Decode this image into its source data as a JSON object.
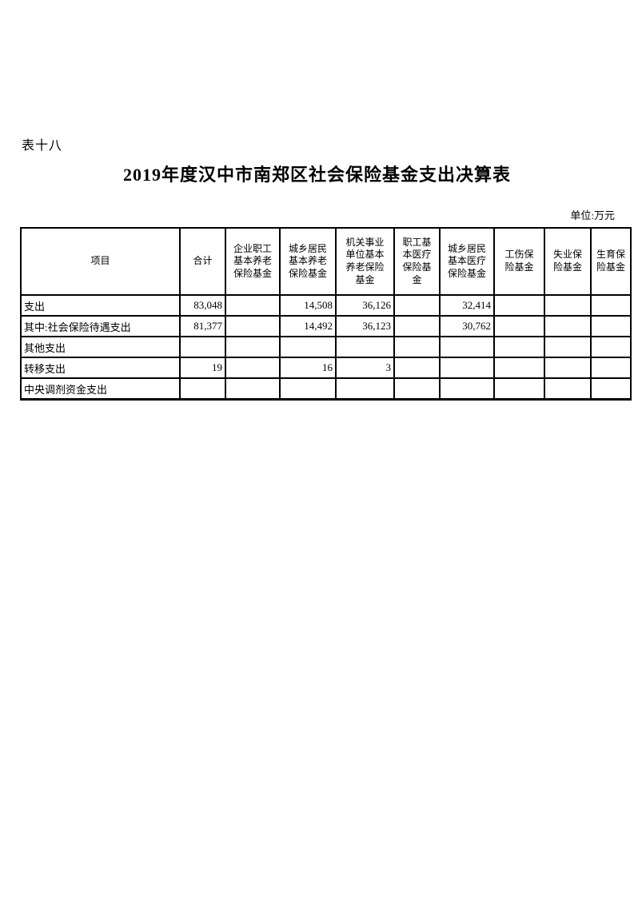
{
  "page": {
    "sheet_label": "表十八",
    "title": "2019年度汉中市南郑区社会保险基金支出决算表",
    "unit_label": "单位:万元"
  },
  "table": {
    "columns": [
      {
        "label": "项目"
      },
      {
        "label": "合计"
      },
      {
        "label": "企业职工\n基本养老\n保险基金"
      },
      {
        "label": "城乡居民\n基本养老\n保险基金"
      },
      {
        "label": "机关事业\n单位基本\n养老保险\n基金"
      },
      {
        "label": "职工基\n本医疗\n保险基\n金"
      },
      {
        "label": "城乡居民\n基本医疗\n保险基金"
      },
      {
        "label": "工伤保\n险基金"
      },
      {
        "label": "失业保\n险基金"
      },
      {
        "label": "生育保\n险基金"
      }
    ],
    "rows": [
      {
        "label": "支出",
        "indent": 0,
        "values": [
          "83,048",
          "",
          "14,508",
          "36,126",
          "",
          "32,414",
          "",
          "",
          ""
        ]
      },
      {
        "label": "其中:社会保险待遇支出",
        "indent": 1,
        "values": [
          "81,377",
          "",
          "14,492",
          "36,123",
          "",
          "30,762",
          "",
          "",
          ""
        ]
      },
      {
        "label": "其他支出",
        "indent": 2,
        "values": [
          "",
          "",
          "",
          "",
          "",
          "",
          "",
          "",
          ""
        ]
      },
      {
        "label": "转移支出",
        "indent": 2,
        "values": [
          "19",
          "",
          "16",
          "3",
          "",
          "",
          "",
          "",
          ""
        ]
      },
      {
        "label": "中央调剂资金支出",
        "indent": 2,
        "values": [
          "",
          "",
          "",
          "",
          "",
          "",
          "",
          "",
          ""
        ]
      }
    ]
  }
}
